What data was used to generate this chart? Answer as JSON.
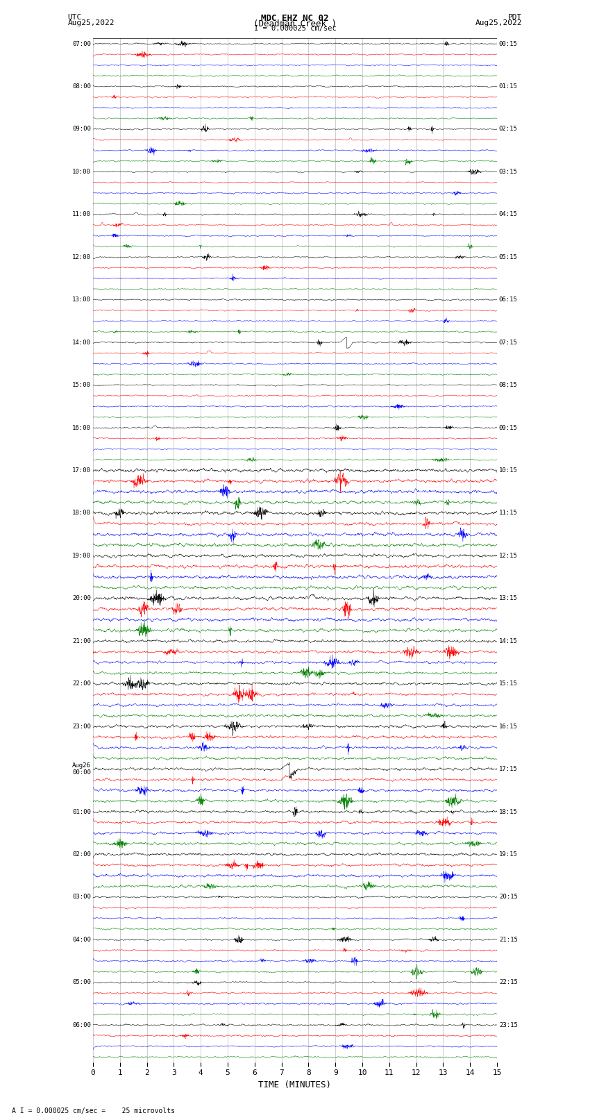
{
  "title_line1": "MDC EHZ NC 02",
  "title_line2": "(Deadman Creek )",
  "title_line3": "I = 0.000025 cm/sec",
  "left_label_line1": "UTC",
  "left_label_line2": "Aug25,2022",
  "right_label_line1": "PDT",
  "right_label_line2": "Aug25,2022",
  "bottom_label": "TIME (MINUTES)",
  "bottom_note": "A I = 0.000025 cm/sec =    25 microvolts",
  "utc_times": [
    "07:00",
    "",
    "",
    "",
    "08:00",
    "",
    "",
    "",
    "09:00",
    "",
    "",
    "",
    "10:00",
    "",
    "",
    "",
    "11:00",
    "",
    "",
    "",
    "12:00",
    "",
    "",
    "",
    "13:00",
    "",
    "",
    "",
    "14:00",
    "",
    "",
    "",
    "15:00",
    "",
    "",
    "",
    "16:00",
    "",
    "",
    "",
    "17:00",
    "",
    "",
    "",
    "18:00",
    "",
    "",
    "",
    "19:00",
    "",
    "",
    "",
    "20:00",
    "",
    "",
    "",
    "21:00",
    "",
    "",
    "",
    "22:00",
    "",
    "",
    "",
    "23:00",
    "",
    "",
    "",
    "Aug26\n00:00",
    "",
    "",
    "",
    "01:00",
    "",
    "",
    "",
    "02:00",
    "",
    "",
    "",
    "03:00",
    "",
    "",
    "",
    "04:00",
    "",
    "",
    "",
    "05:00",
    "",
    "",
    "",
    "06:00",
    "",
    "",
    ""
  ],
  "pdt_times": [
    "00:15",
    "",
    "",
    "",
    "01:15",
    "",
    "",
    "",
    "02:15",
    "",
    "",
    "",
    "03:15",
    "",
    "",
    "",
    "04:15",
    "",
    "",
    "",
    "05:15",
    "",
    "",
    "",
    "06:15",
    "",
    "",
    "",
    "07:15",
    "",
    "",
    "",
    "08:15",
    "",
    "",
    "",
    "09:15",
    "",
    "",
    "",
    "10:15",
    "",
    "",
    "",
    "11:15",
    "",
    "",
    "",
    "12:15",
    "",
    "",
    "",
    "13:15",
    "",
    "",
    "",
    "14:15",
    "",
    "",
    "",
    "15:15",
    "",
    "",
    "",
    "16:15",
    "",
    "",
    "",
    "17:15",
    "",
    "",
    "",
    "18:15",
    "",
    "",
    "",
    "19:15",
    "",
    "",
    "",
    "20:15",
    "",
    "",
    "",
    "21:15",
    "",
    "",
    "",
    "22:15",
    "",
    "",
    "",
    "23:15",
    "",
    "",
    ""
  ],
  "colors": [
    "black",
    "red",
    "blue",
    "green"
  ],
  "n_rows": 96,
  "x_min": 0,
  "x_max": 15,
  "background_color": "white",
  "grid_color": "#aaaaaa",
  "noise_seed": 42,
  "figwidth": 8.5,
  "figheight": 16.13,
  "dpi": 100
}
